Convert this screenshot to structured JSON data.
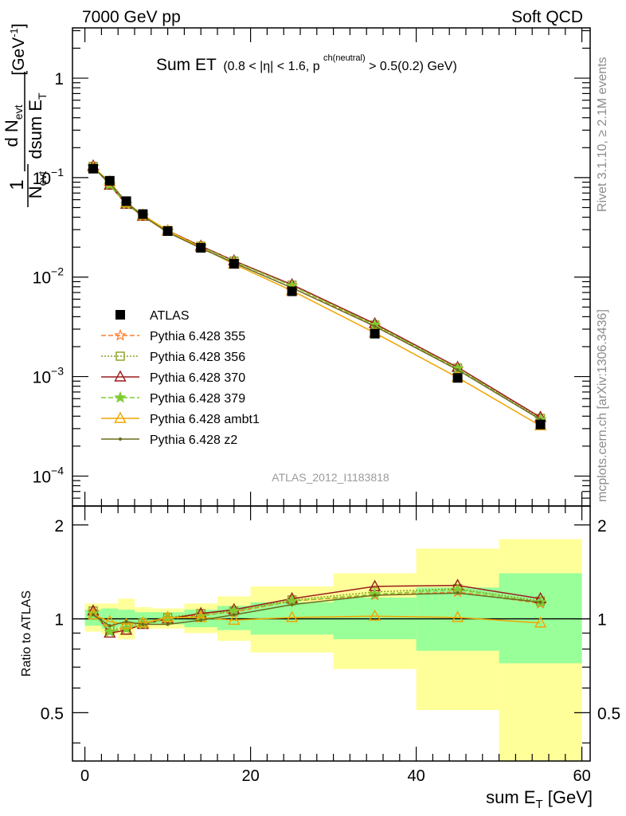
{
  "header": {
    "left": "7000 GeV pp",
    "right": "Soft QCD"
  },
  "title": {
    "main": "Sum ET",
    "cut_pre": "(0.8 < |η| < 1.6, p",
    "cut_sup": "ch(neutral)",
    "cut_post": " > 0.5(0.2) GeV)"
  },
  "watermark": "ATLAS_2012_I1183818",
  "side_labels": {
    "rivet": "Rivet 3.1.10, ≥ 2.1M events",
    "mcplots": "mcplots.cern.ch [arXiv:1306.3436]"
  },
  "ylabel_main": {
    "num": "d N",
    "num_sub": "evt",
    "den1": "N",
    "den1_sub": "evt",
    "den2": "dsum E",
    "den2_sub": "T",
    "prefix": "1",
    "unit": "[GeV",
    "unit_sup": "-1",
    "unit_close": "]"
  },
  "ylabel_ratio": "Ratio to ATLAS",
  "xlabel": {
    "text": "sum E",
    "sub": "T",
    "unit": " [GeV]"
  },
  "main_yticks": [
    {
      "v": 1,
      "label": "1",
      "exp": ""
    },
    {
      "v": 0.1,
      "label": "10",
      "exp": "−1"
    },
    {
      "v": 0.01,
      "label": "10",
      "exp": "−2"
    },
    {
      "v": 0.001,
      "label": "10",
      "exp": "−3"
    },
    {
      "v": 0.0001,
      "label": "10",
      "exp": "−4"
    }
  ],
  "ratio_yticks": [
    {
      "v": 2,
      "label": "2"
    },
    {
      "v": 1,
      "label": "1"
    },
    {
      "v": 0.5,
      "label": "0.5"
    }
  ],
  "xticks": [
    {
      "v": 0,
      "label": "0"
    },
    {
      "v": 20,
      "label": "20"
    },
    {
      "v": 40,
      "label": "40"
    },
    {
      "v": 60,
      "label": "60"
    }
  ],
  "colors": {
    "band_outer": "#ffff99",
    "band_inner": "#99ff99",
    "atlas": "#000000",
    "p355": "#ff7f2a",
    "p356": "#8ca01e",
    "p370": "#9b1c1c",
    "p379": "#7fcc33",
    "ambt1": "#f0a500",
    "z2": "#6b6b1e"
  },
  "chart_data": {
    "type": "line",
    "x": [
      1,
      3,
      5,
      7,
      10,
      14,
      18,
      25,
      35,
      45,
      55
    ],
    "x_edges": [
      0,
      2,
      4,
      6,
      8,
      12,
      16,
      20,
      30,
      40,
      50,
      60
    ],
    "xlim": [
      -1.5,
      61
    ],
    "main_ylim": [
      5e-05,
      3.2
    ],
    "main_log": true,
    "ratio_ylim": [
      0.35,
      2.3
    ],
    "ratio_log": true,
    "band_inner": [
      [
        0.95,
        1.07
      ],
      [
        0.93,
        1.08
      ],
      [
        0.94,
        1.07
      ],
      [
        0.96,
        1.05
      ],
      [
        0.96,
        1.05
      ],
      [
        0.94,
        1.07
      ],
      [
        0.92,
        1.1
      ],
      [
        0.89,
        1.13
      ],
      [
        0.86,
        1.17
      ],
      [
        0.79,
        1.26
      ],
      [
        0.72,
        1.4
      ]
    ],
    "band_outer": [
      [
        0.91,
        1.12
      ],
      [
        0.89,
        1.12
      ],
      [
        0.86,
        1.16
      ],
      [
        0.93,
        1.09
      ],
      [
        0.93,
        1.08
      ],
      [
        0.9,
        1.12
      ],
      [
        0.85,
        1.18
      ],
      [
        0.78,
        1.27
      ],
      [
        0.69,
        1.4
      ],
      [
        0.51,
        1.68
      ],
      [
        0.3,
        1.8
      ]
    ],
    "series": [
      {
        "name": "ATLAS",
        "key": "atlas",
        "marker": "square",
        "dash": "",
        "values": [
          0.123,
          0.093,
          0.058,
          0.043,
          0.029,
          0.0197,
          0.0136,
          0.0072,
          0.0027,
          0.00097,
          0.00033
        ],
        "ratio": [
          1,
          1,
          1,
          1,
          1,
          1,
          1,
          1,
          1,
          1,
          1
        ]
      },
      {
        "name": "Pythia 6.428 355",
        "key": "p355",
        "marker": "star",
        "dash": "6,3",
        "values": [
          0.129,
          0.085,
          0.054,
          0.041,
          0.029,
          0.0203,
          0.0143,
          0.0082,
          0.0032,
          0.00119,
          0.00037
        ],
        "ratio": [
          1.05,
          0.91,
          0.93,
          0.96,
          1.0,
          1.03,
          1.05,
          1.14,
          1.19,
          1.22,
          1.12
        ]
      },
      {
        "name": "Pythia 6.428 356",
        "key": "p356",
        "marker": "osquare",
        "dash": "2,2",
        "values": [
          0.13,
          0.086,
          0.055,
          0.042,
          0.0295,
          0.0205,
          0.0145,
          0.0083,
          0.0033,
          0.00122,
          0.00038
        ],
        "ratio": [
          1.06,
          0.92,
          0.94,
          0.97,
          1.01,
          1.04,
          1.06,
          1.15,
          1.22,
          1.25,
          1.14
        ]
      },
      {
        "name": "Pythia 6.428 370",
        "key": "p370",
        "marker": "otriangle",
        "dash": "",
        "values": [
          0.131,
          0.084,
          0.054,
          0.041,
          0.0292,
          0.0205,
          0.0146,
          0.0084,
          0.0034,
          0.00124,
          0.00039
        ],
        "ratio": [
          1.06,
          0.9,
          0.92,
          0.96,
          1.0,
          1.04,
          1.07,
          1.16,
          1.27,
          1.28,
          1.16
        ]
      },
      {
        "name": "Pythia 6.428 379",
        "key": "p379",
        "marker": "star",
        "dash": "6,3",
        "values": [
          0.128,
          0.085,
          0.054,
          0.041,
          0.0291,
          0.0202,
          0.0144,
          0.0082,
          0.0033,
          0.00121,
          0.00037
        ],
        "ratio": [
          1.04,
          0.91,
          0.93,
          0.96,
          1.0,
          1.02,
          1.06,
          1.14,
          1.2,
          1.24,
          1.13
        ]
      },
      {
        "name": "Pythia 6.428 ambt1",
        "key": "ambt1",
        "marker": "otriangle",
        "dash": "",
        "values": [
          0.126,
          0.091,
          0.056,
          0.042,
          0.0293,
          0.0199,
          0.0135,
          0.0073,
          0.00275,
          0.00098,
          0.00032
        ],
        "ratio": [
          1.03,
          0.98,
          0.96,
          0.97,
          1.01,
          1.01,
          0.99,
          1.01,
          1.02,
          1.01,
          0.97
        ]
      },
      {
        "name": "Pythia 6.428 z2",
        "key": "z2",
        "marker": "dot",
        "dash": "",
        "values": [
          0.127,
          0.088,
          0.057,
          0.041,
          0.0281,
          0.0195,
          0.0139,
          0.0078,
          0.0032,
          0.00117,
          0.00037
        ],
        "ratio": [
          1.03,
          0.95,
          0.98,
          0.96,
          0.96,
          0.99,
          1.03,
          1.11,
          1.19,
          1.21,
          1.13
        ]
      }
    ]
  }
}
